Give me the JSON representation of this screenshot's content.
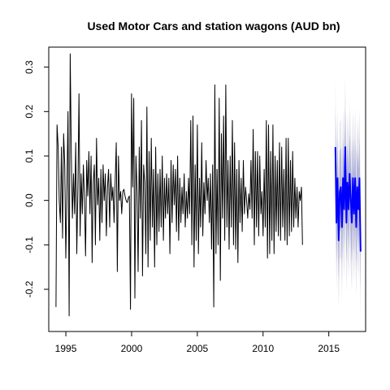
{
  "chart_data": {
    "type": "line",
    "title": "Used Motor Cars and station wagons (AUD bn)",
    "xlabel": "",
    "ylabel": "",
    "xlim": [
      1993.7,
      2017.8
    ],
    "ylim": [
      -0.295,
      0.345
    ],
    "x_ticks": [
      1995,
      2000,
      2005,
      2010,
      2015
    ],
    "x_tick_labels": [
      "1995",
      "2000",
      "2005",
      "2010",
      "2015"
    ],
    "y_ticks": [
      -0.2,
      -0.1,
      0.0,
      0.1,
      0.2,
      0.3
    ],
    "y_tick_labels": [
      "-0.2",
      "-0.1",
      "0.0",
      "0.1",
      "0.2",
      "0.3"
    ],
    "grid": false,
    "legend": "none",
    "colors": {
      "history": "#000000",
      "forecast": "#0000ff",
      "interval_outer": "#e6e6ee",
      "interval_inner": "#b4b4dc"
    },
    "series": [
      {
        "role": "history",
        "x_start": 1994.25,
        "x_step": 0.08333,
        "values": [
          -0.24,
          0.17,
          0.12,
          0.0,
          -0.05,
          0.12,
          -0.085,
          0.15,
          0.08,
          -0.13,
          0.03,
          0.2,
          -0.26,
          0.33,
          0.1,
          -0.04,
          0.06,
          -0.03,
          0.13,
          -0.12,
          0.03,
          0.24,
          -0.08,
          0.06,
          -0.03,
          0.08,
          0.0,
          -0.125,
          0.09,
          0.01,
          0.11,
          -0.03,
          0.1,
          -0.14,
          0.04,
          0.08,
          -0.1,
          0.14,
          -0.01,
          0.05,
          -0.09,
          0.07,
          -0.05,
          0.08,
          0.0,
          0.06,
          -0.08,
          0.03,
          0.07,
          -0.06,
          0.06,
          0.0,
          0.03,
          -0.05,
          0.04,
          0.13,
          -0.16,
          0.1,
          0.0,
          0.02,
          -0.03,
          0.02,
          0.025,
          0.01,
          0.0,
          -0.005,
          0.005,
          0.01,
          -0.245,
          0.24,
          0.03,
          0.23,
          -0.22,
          0.1,
          0.02,
          -0.16,
          0.12,
          -0.04,
          0.18,
          -0.17,
          0.08,
          0.04,
          -0.12,
          0.21,
          -0.15,
          0.11,
          -0.09,
          0.14,
          -0.06,
          0.07,
          -0.15,
          0.12,
          -0.1,
          0.06,
          -0.07,
          0.07,
          -0.06,
          0.1,
          -0.09,
          0.05,
          -0.04,
          0.06,
          -0.03,
          0.05,
          -0.12,
          0.09,
          -0.05,
          0.08,
          -0.01,
          0.07,
          -0.07,
          0.1,
          -0.09,
          0.05,
          -0.05,
          0.03,
          -0.03,
          0.06,
          -0.06,
          0.02,
          -0.04,
          0.05,
          -0.03,
          0.18,
          -0.1,
          0.19,
          -0.15,
          0.08,
          -0.09,
          0.17,
          -0.12,
          0.05,
          -0.06,
          0.13,
          -0.08,
          0.04,
          -0.03,
          0.09,
          0.0,
          0.05,
          -0.05,
          0.06,
          -0.11,
          0.08,
          -0.24,
          0.26,
          -0.12,
          0.07,
          -0.1,
          0.23,
          -0.18,
          0.15,
          -0.04,
          0.19,
          -0.09,
          0.26,
          -0.06,
          0.09,
          -0.11,
          0.1,
          -0.06,
          0.18,
          -0.1,
          0.13,
          -0.11,
          0.07,
          -0.14,
          0.09,
          -0.05,
          0.05,
          -0.07,
          0.09,
          -0.03,
          0.03,
          0.0,
          -0.04,
          0.015,
          -0.02,
          0.09,
          -0.04,
          0.16,
          -0.1,
          0.11,
          -0.06,
          0.11,
          -0.08,
          0.1,
          -0.03,
          0.02,
          -0.08,
          0.07,
          -0.06,
          0.18,
          -0.13,
          0.17,
          -0.12,
          0.11,
          -0.09,
          0.17,
          -0.12,
          0.1,
          -0.07,
          0.09,
          -0.08,
          0.13,
          -0.09,
          0.12,
          -0.06,
          0.07,
          -0.09,
          0.14,
          -0.1,
          0.14,
          -0.08,
          0.09,
          -0.07,
          0.11,
          -0.06,
          0.05,
          -0.04,
          0.03,
          -0.06,
          0.02,
          0.0,
          0.03,
          -0.1
        ]
      },
      {
        "role": "forecast",
        "x_start": 2015.5,
        "x_step": 0.08333,
        "values": [
          0.12,
          -0.05,
          0.05,
          -0.09,
          0.02,
          0.03,
          -0.06,
          0.05,
          -0.02,
          0.12,
          -0.05,
          0.04,
          -0.02,
          0.06,
          0.0,
          -0.05,
          0.05,
          -0.03,
          0.05,
          -0.06,
          0.03,
          -0.02,
          0.05,
          -0.115
        ],
        "interval_80_halfwidth": 0.09,
        "interval_95_halfwidth": 0.155
      }
    ]
  }
}
